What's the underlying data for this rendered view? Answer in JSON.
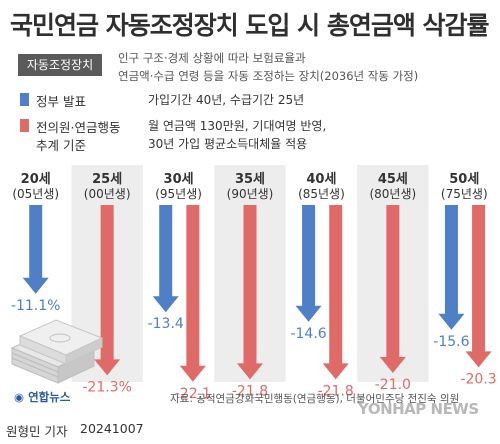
{
  "title": "국민연금 자동조정장치 도입 시 총연금액 삭감률",
  "tag": "자동조정장치",
  "description": [
    "인구 구조·경제 상황에 따라 보험료율과",
    "연금액·수급 연령 등을 자동 조정하는 장치(2036년 작동 가정)"
  ],
  "legend": [
    {
      "name": "정부 발표",
      "color": "#4f7fc6",
      "desc": [
        "가입기간 40년, 수급기간 25년"
      ]
    },
    {
      "name": "전 의원·연금행동 추계 기준",
      "name_lines": [
        "전의원·연금행동",
        "추계 기준"
      ],
      "color": "#e06a68",
      "desc": [
        "월 연금액 130만원, 기대여명 반영,",
        "30년 가입 평균소득대체율 적용"
      ]
    }
  ],
  "colors": {
    "blue": "#4f7fc6",
    "red": "#e06a68",
    "bg_stripe": "#ededed"
  },
  "chart_data": {
    "type": "bar",
    "orientation": "downward",
    "categories": [
      {
        "age": "20세",
        "birth": "(05년생)"
      },
      {
        "age": "25세",
        "birth": "(00년생)"
      },
      {
        "age": "30세",
        "birth": "(95년생)"
      },
      {
        "age": "35세",
        "birth": "(90년생)"
      },
      {
        "age": "40세",
        "birth": "(85년생)"
      },
      {
        "age": "45세",
        "birth": "(80년생)"
      },
      {
        "age": "50세",
        "birth": "(75년생)"
      }
    ],
    "series": [
      {
        "name": "정부 발표",
        "values": [
          -11.1,
          null,
          -13.4,
          null,
          -14.6,
          null,
          -15.6
        ]
      },
      {
        "name": "전 의원·연금행동 추계 기준",
        "values": [
          null,
          -21.3,
          -22.1,
          -21.8,
          -21.8,
          -21.0,
          -20.3
        ]
      }
    ],
    "labels": {
      "blue": [
        "-11.1%",
        null,
        "-13.4",
        null,
        "-14.6",
        null,
        "-15.6"
      ],
      "red": [
        null,
        "-21.3%",
        "-22.1",
        "-21.8",
        "-21.8",
        "-21.0",
        "-20.3"
      ]
    },
    "ylim": [
      -23,
      0
    ]
  },
  "source": "자료: 공적연금강화국민행동(연금행동), 더불어민주당 전진숙 의원",
  "logo": "연합뉴스",
  "author": "원형민 기자",
  "date": "20241007",
  "watermark": "YONHAP NEWS"
}
